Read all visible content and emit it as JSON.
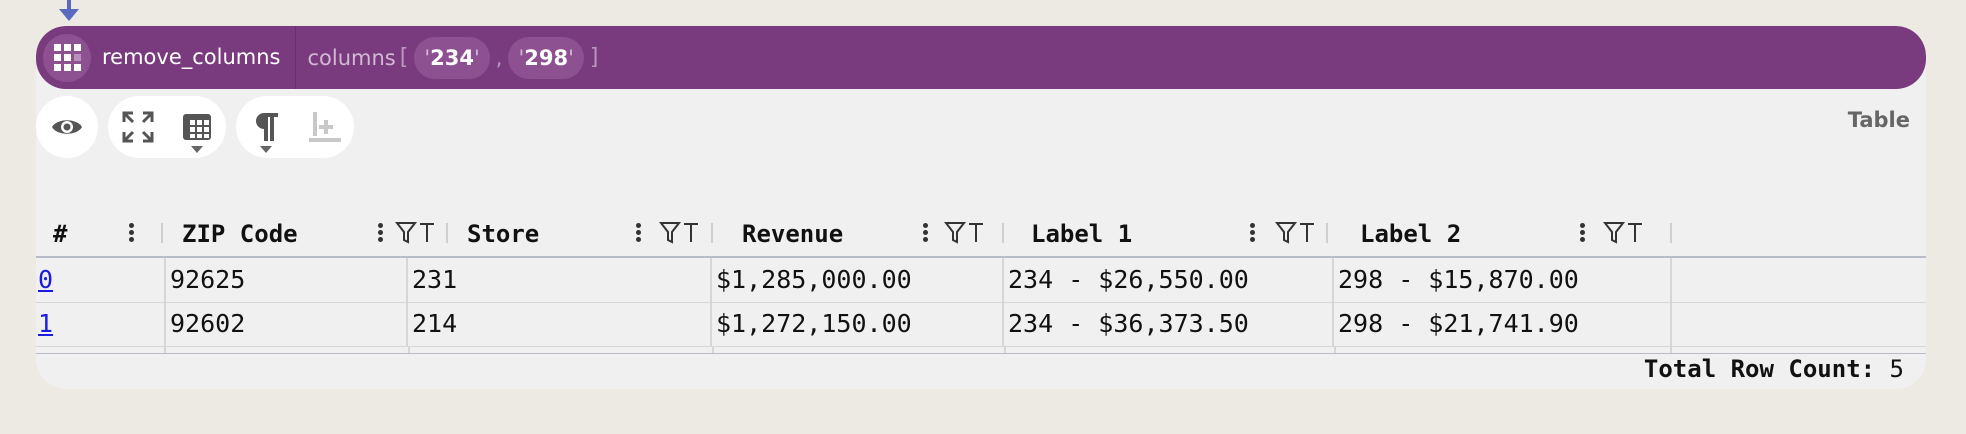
{
  "step": {
    "name": "remove_columns",
    "param_label": "columns",
    "open_bracket": "[",
    "close_bracket": "]",
    "values": [
      "234",
      "298"
    ],
    "quote": "'",
    "comma": ","
  },
  "toolbar": {
    "icons": [
      "eye-icon",
      "expand-icon",
      "table-grid-icon",
      "pilcrow-icon",
      "insert-row-icon"
    ],
    "view_label": "Table"
  },
  "table": {
    "columns": [
      "#",
      "ZIP Code",
      "Store",
      "Revenue",
      "Label 1",
      "Label 2"
    ],
    "rows": [
      [
        "0",
        "92625",
        "231",
        "$1,285,000.00",
        "234 - $26,550.00",
        "298 - $15,870.00"
      ],
      [
        "1",
        "92602",
        "214",
        "$1,272,150.00",
        "234 - $36,373.50",
        "298 - $21,741.90"
      ]
    ]
  },
  "footer": {
    "label": "Total Row Count:",
    "count": "5"
  },
  "colors": {
    "step_bar": "#7a3b7e",
    "chip": "#8d5191",
    "link": "#1a1ae0",
    "arrow": "#5a6bbf"
  }
}
